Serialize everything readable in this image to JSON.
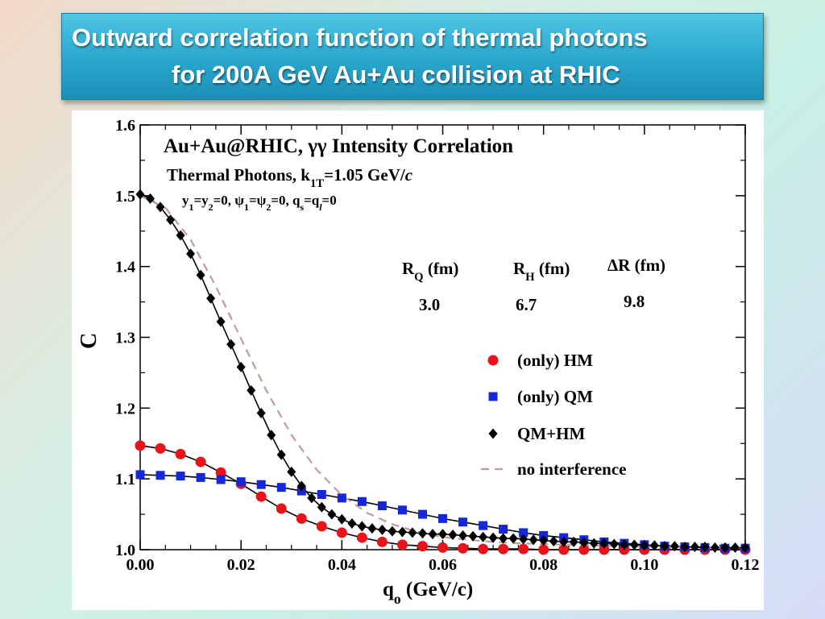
{
  "slide": {
    "title_line1": "Outward correlation function of thermal photons",
    "title_line2": "for 200A GeV Au+Au collision at RHIC"
  },
  "chart_data": {
    "type": "scatter",
    "title": "Au+Au@RHIC, γγ Intensity Correlation",
    "annotations": {
      "line2": "Thermal Photons, k1T=1.05 GeV/c",
      "line3": "y1=y2=0, ψ1=ψ2=0, qs=ql=0"
    },
    "xlabel": "qo (GeV/c)",
    "ylabel": "C",
    "xlim": [
      0.0,
      0.12
    ],
    "ylim": [
      1.0,
      1.6
    ],
    "x_ticks": [
      "0.00",
      "0.02",
      "0.04",
      "0.06",
      "0.08",
      "0.10",
      "0.12"
    ],
    "y_ticks": [
      "1.0",
      "1.1",
      "1.2",
      "1.3",
      "1.4",
      "1.5",
      "1.6"
    ],
    "grid": false,
    "legend_position": "center-right",
    "radii_table": {
      "headers": [
        "RQ (fm)",
        "RH (fm)",
        "ΔR (fm)"
      ],
      "values": [
        "3.0",
        "6.7",
        "9.8"
      ]
    },
    "series": [
      {
        "name": "(only) HM",
        "marker": "circle",
        "color": "#e8141a",
        "x": [
          0.0,
          0.004,
          0.008,
          0.012,
          0.016,
          0.02,
          0.024,
          0.028,
          0.032,
          0.036,
          0.04,
          0.044,
          0.048,
          0.052,
          0.056,
          0.06,
          0.064,
          0.068,
          0.072,
          0.076,
          0.08,
          0.084,
          0.088,
          0.092,
          0.096,
          0.1,
          0.104,
          0.108,
          0.112,
          0.116,
          0.12
        ],
        "y": [
          1.147,
          1.143,
          1.135,
          1.124,
          1.109,
          1.093,
          1.075,
          1.058,
          1.044,
          1.033,
          1.024,
          1.017,
          1.011,
          1.007,
          1.005,
          1.003,
          1.002,
          1.001,
          1.001,
          1.001,
          1.0,
          1.0,
          1.0,
          1.0,
          1.0,
          1.0,
          1.0,
          1.0,
          1.0,
          1.0,
          1.0
        ]
      },
      {
        "name": "(only) QM",
        "marker": "square",
        "color": "#1428d8",
        "x": [
          0.0,
          0.004,
          0.008,
          0.012,
          0.016,
          0.02,
          0.024,
          0.028,
          0.032,
          0.036,
          0.04,
          0.044,
          0.048,
          0.052,
          0.056,
          0.06,
          0.064,
          0.068,
          0.072,
          0.076,
          0.08,
          0.084,
          0.088,
          0.092,
          0.096,
          0.1,
          0.104,
          0.108,
          0.112,
          0.116,
          0.12
        ],
        "y": [
          1.106,
          1.105,
          1.104,
          1.102,
          1.099,
          1.096,
          1.092,
          1.088,
          1.083,
          1.078,
          1.073,
          1.068,
          1.062,
          1.056,
          1.05,
          1.044,
          1.039,
          1.034,
          1.029,
          1.024,
          1.02,
          1.017,
          1.014,
          1.011,
          1.009,
          1.007,
          1.005,
          1.004,
          1.003,
          1.002,
          1.002
        ]
      },
      {
        "name": "QM+HM",
        "marker": "diamond",
        "color": "#000000",
        "x": [
          0.0,
          0.002,
          0.004,
          0.006,
          0.008,
          0.01,
          0.012,
          0.014,
          0.016,
          0.018,
          0.02,
          0.022,
          0.024,
          0.026,
          0.028,
          0.03,
          0.032,
          0.034,
          0.036,
          0.038,
          0.04,
          0.042,
          0.044,
          0.046,
          0.048,
          0.05,
          0.052,
          0.054,
          0.056,
          0.058,
          0.06,
          0.062,
          0.064,
          0.066,
          0.068,
          0.07,
          0.072,
          0.074,
          0.076,
          0.078,
          0.08,
          0.082,
          0.084,
          0.086,
          0.088,
          0.09,
          0.092,
          0.094,
          0.096,
          0.098,
          0.1,
          0.102,
          0.104,
          0.106,
          0.108,
          0.11,
          0.112,
          0.114,
          0.116,
          0.118,
          0.12
        ],
        "y": [
          1.502,
          1.496,
          1.484,
          1.466,
          1.444,
          1.418,
          1.388,
          1.355,
          1.322,
          1.29,
          1.258,
          1.225,
          1.193,
          1.162,
          1.134,
          1.11,
          1.09,
          1.073,
          1.06,
          1.05,
          1.043,
          1.037,
          1.033,
          1.03,
          1.028,
          1.026,
          1.025,
          1.024,
          1.023,
          1.022,
          1.022,
          1.021,
          1.02,
          1.019,
          1.018,
          1.017,
          1.016,
          1.016,
          1.015,
          1.014,
          1.013,
          1.012,
          1.011,
          1.011,
          1.01,
          1.009,
          1.009,
          1.008,
          1.007,
          1.007,
          1.006,
          1.006,
          1.005,
          1.005,
          1.004,
          1.004,
          1.004,
          1.003,
          1.003,
          1.003,
          1.003
        ]
      },
      {
        "name": "no interference",
        "marker": "dashed-line",
        "color": "#c49b94",
        "x": [
          0.0,
          0.005,
          0.01,
          0.015,
          0.02,
          0.025,
          0.03,
          0.035,
          0.04,
          0.045,
          0.05,
          0.055,
          0.06,
          0.065,
          0.07,
          0.075,
          0.08,
          0.085,
          0.09,
          0.095,
          0.1,
          0.105,
          0.11,
          0.115,
          0.12
        ],
        "y": [
          1.5,
          1.483,
          1.438,
          1.372,
          1.298,
          1.225,
          1.162,
          1.113,
          1.077,
          1.052,
          1.036,
          1.025,
          1.018,
          1.014,
          1.011,
          1.009,
          1.008,
          1.007,
          1.006,
          1.005,
          1.004,
          1.004,
          1.003,
          1.003,
          1.002
        ]
      }
    ]
  }
}
